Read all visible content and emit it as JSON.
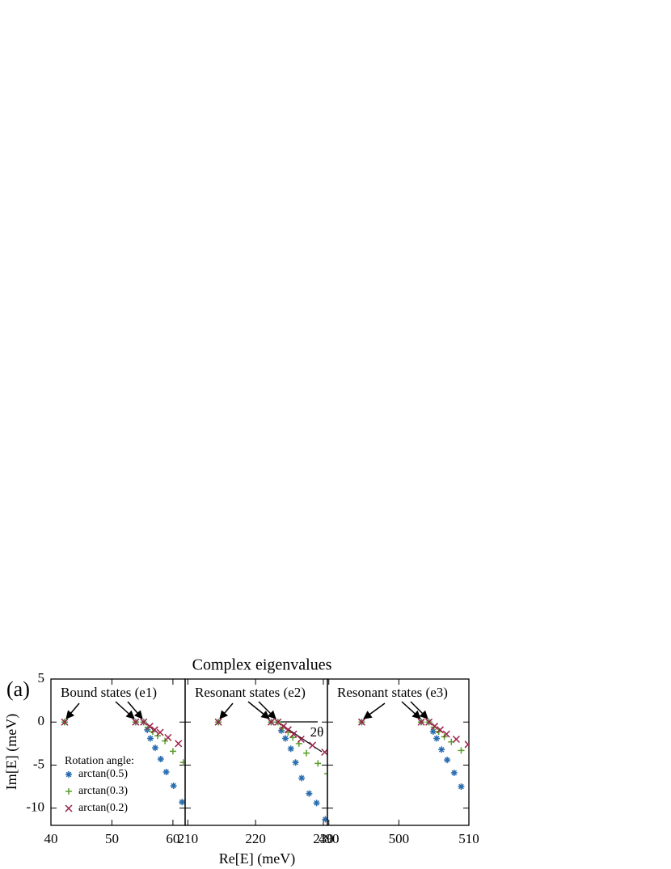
{
  "panel_label": "(a)",
  "title": "Complex eigenvalues",
  "x_label": "Re[E] (meV)",
  "y_label": "Im[E] (meV)",
  "legend_title": "Rotation angle:",
  "chart_data": [
    {
      "type": "scatter",
      "annotation": "Bound states (e1)",
      "xlim": [
        40,
        62
      ],
      "ylim": [
        -12,
        5
      ],
      "xticks": [
        40,
        50,
        60
      ],
      "yticks": [
        -10,
        -5,
        0,
        5
      ],
      "series": [
        {
          "name": "arctan(0.5)",
          "color": "#2a6db0",
          "marker": "asterisk",
          "x": [
            42.25,
            53.9,
            55.2,
            55.8,
            56.3,
            57.1,
            58.0,
            58.9,
            60.1,
            61.5
          ],
          "values": [
            0,
            0,
            0,
            -0.9,
            -1.9,
            -3.0,
            -4.3,
            -5.8,
            -7.4,
            -9.3
          ]
        },
        {
          "name": "arctan(0.3)",
          "color": "#5a9e2a",
          "marker": "plus",
          "x": [
            42.25,
            53.9,
            55.2,
            55.9,
            56.7,
            57.5,
            58.7,
            60.0,
            61.7
          ],
          "values": [
            0,
            0,
            0,
            -0.6,
            -1.1,
            -1.6,
            -2.2,
            -3.4,
            -4.7
          ]
        },
        {
          "name": "arctan(0.2)",
          "color": "#9c1f4a",
          "marker": "cross",
          "x": [
            42.25,
            53.9,
            55.2,
            56.2,
            57.0,
            57.9,
            59.2,
            60.9
          ],
          "values": [
            0,
            0,
            0,
            -0.5,
            -0.9,
            -1.2,
            -1.8,
            -2.5
          ]
        }
      ]
    },
    {
      "type": "scatter",
      "annotation": "Resonant states (e2)",
      "angle_label": "2θ",
      "xlim": [
        209.6,
        230.6
      ],
      "ylim": [
        -12,
        5
      ],
      "xticks": [
        210,
        220,
        230
      ],
      "yticks": [
        -10,
        -5,
        0,
        5
      ],
      "series": [
        {
          "color": "#2a6db0",
          "marker": "asterisk",
          "x": [
            214.5,
            222.3,
            223.3,
            223.8,
            224.4,
            225.2,
            225.9,
            226.8,
            227.9,
            229.0,
            230.3
          ],
          "values": [
            0,
            0,
            0,
            -1.0,
            -1.9,
            -3.1,
            -4.7,
            -6.5,
            -8.3,
            -9.4,
            -11.3
          ]
        },
        {
          "color": "#5a9e2a",
          "marker": "plus",
          "x": [
            214.5,
            222.3,
            223.3,
            224.0,
            224.8,
            225.5,
            226.4,
            227.5,
            229.2,
            230.6
          ],
          "values": [
            0,
            0,
            0,
            -0.6,
            -1.2,
            -1.8,
            -2.5,
            -3.6,
            -4.8,
            -6.0
          ]
        },
        {
          "color": "#9c1f4a",
          "marker": "cross",
          "x": [
            214.5,
            222.3,
            223.3,
            224.1,
            224.8,
            225.6,
            226.7,
            228.4,
            230.2
          ],
          "values": [
            0,
            0,
            0,
            -0.5,
            -0.9,
            -1.4,
            -2.0,
            -2.7,
            -3.5
          ]
        }
      ]
    },
    {
      "type": "scatter",
      "annotation": "Resonant states (e3)",
      "xlim": [
        489.8,
        510
      ],
      "ylim": [
        -12,
        5
      ],
      "xticks": [
        490,
        500,
        510
      ],
      "yticks": [
        -10,
        -5,
        0,
        5
      ],
      "series": [
        {
          "color": "#2a6db0",
          "marker": "asterisk",
          "x": [
            494.7,
            503.2,
            504.3,
            504.9,
            505.4,
            506.1,
            506.9,
            507.9,
            508.9
          ],
          "values": [
            0,
            0,
            0,
            -1.1,
            -1.9,
            -3.2,
            -4.4,
            -5.9,
            -7.5
          ]
        },
        {
          "color": "#5a9e2a",
          "marker": "plus",
          "x": [
            494.7,
            503.2,
            504.3,
            505.0,
            505.7,
            506.5,
            507.5,
            508.9
          ],
          "values": [
            0,
            0,
            0,
            -0.6,
            -1.1,
            -1.7,
            -2.3,
            -3.3
          ]
        },
        {
          "color": "#9c1f4a",
          "marker": "cross",
          "x": [
            494.7,
            503.2,
            504.3,
            505.1,
            505.9,
            506.8,
            508.2,
            509.9
          ],
          "values": [
            0,
            0,
            0,
            -0.5,
            -0.9,
            -1.4,
            -2.0,
            -2.6
          ]
        }
      ]
    }
  ]
}
